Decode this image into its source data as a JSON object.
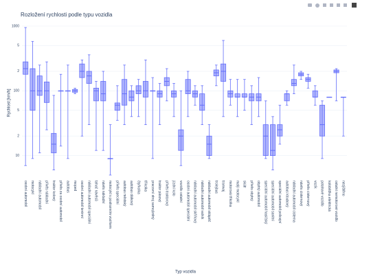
{
  "chart_data": {
    "type": "box",
    "title": "Rozložení rychlosti podle typu vozidla",
    "x_label": "Typ vozidla",
    "y_label": "Rychlost [km/h]",
    "color": "#636efa",
    "fill": "rgba(99,110,250,0.5)",
    "log_y": true,
    "grid": true,
    "ylim": [
      5,
      1000
    ],
    "yticks": [
      {
        "value": 10,
        "label": "10"
      },
      {
        "value": 20,
        "label": "2"
      },
      {
        "value": 50,
        "label": "5"
      },
      100,
      {
        "value": 200,
        "label": "2"
      },
      {
        "value": 500,
        "label": "5"
      },
      {
        "value": 1000,
        "label": "1000"
      }
    ],
    "categories": [
      "osobní automobil",
      "motocykl",
      "nákladní automobil",
      "přívěs nákladní",
      "traktor kolový",
      "přívěs za osobní automobil",
      "autobus",
      "moped",
      "osobní automobil terénní",
      "nákladní automobil speciální",
      "tahač návěsů",
      "návěs nákladní",
      "motocykl s postranním vozíkem",
      "přívěs speciální",
      "autobus městský",
      "autobus dálkový",
      "čtyřkolka",
      "tříkolka",
      "pracovní stroj samojízdný",
      "traktor pásový",
      "přívěs traktorový",
      "jízdní kolo",
      "vozidlo ostatní",
      "osobní automobil speciální",
      "nákladní automobil skříňový",
      "nákladní automobil valník",
      "nákladní automobil sklápěč",
      "trolejbus",
      "tramvaj",
      "motorová tříkolka",
      "malý motocykl",
      "skútr",
      "přívěs obytný",
      "obytný automobil",
      "speciální automobil hasičský",
      "speciální automobil sanitní",
      "speciální automobil policejní",
      "autobus kloubový",
      "nákladní automobil cisterna",
      "návěs cisternový",
      "přívěs cisternový",
      "vozík",
      "potahové vozidlo",
      "koloběžka elektrická",
      "ostatní nemotorové vozidlo",
      "nezjištěno"
    ],
    "values": [
      [
        7,
        180,
        220,
        280,
        950
      ],
      [
        9,
        50,
        100,
        220,
        580
      ],
      [
        11,
        85,
        100,
        170,
        250
      ],
      [
        25,
        66,
        100,
        137,
        280
      ],
      [
        6,
        11,
        15,
        22,
        85
      ],
      [
        14,
        100,
        100,
        100,
        180
      ],
      [
        9,
        100,
        100,
        100,
        250
      ],
      [
        90,
        95,
        100,
        105,
        110
      ],
      [
        20,
        160,
        200,
        260,
        300
      ],
      [
        30,
        130,
        170,
        200,
        360
      ],
      [
        12,
        70,
        100,
        110,
        140
      ],
      [
        12,
        70,
        90,
        140,
        200
      ],
      [
        5,
        9,
        9,
        9,
        30
      ],
      [
        35,
        50,
        60,
        65,
        120
      ],
      [
        30,
        60,
        90,
        150,
        250
      ],
      [
        40,
        70,
        80,
        100,
        120
      ],
      [
        40,
        90,
        100,
        120,
        150
      ],
      [
        30,
        80,
        100,
        140,
        300
      ],
      [
        9,
        100,
        100,
        100,
        160
      ],
      [
        30,
        80,
        90,
        100,
        130
      ],
      [
        70,
        120,
        140,
        160,
        220
      ],
      [
        40,
        80,
        90,
        100,
        130
      ],
      [
        7,
        12,
        20,
        25,
        100
      ],
      [
        40,
        90,
        100,
        150,
        200
      ],
      [
        60,
        80,
        90,
        100,
        120
      ],
      [
        30,
        50,
        60,
        90,
        120
      ],
      [
        9,
        10,
        15,
        20,
        30
      ],
      [
        120,
        170,
        190,
        210,
        250
      ],
      [
        40,
        140,
        200,
        260,
        600
      ],
      [
        60,
        80,
        90,
        100,
        150
      ],
      [
        40,
        80,
        80,
        90,
        150
      ],
      [
        50,
        80,
        80,
        90,
        150
      ],
      [
        30,
        70,
        80,
        90,
        120
      ],
      [
        40,
        70,
        80,
        90,
        160
      ],
      [
        9,
        10,
        20,
        30,
        70
      ],
      [
        6,
        10,
        12,
        30,
        40
      ],
      [
        15,
        20,
        25,
        30,
        60
      ],
      [
        60,
        70,
        90,
        90,
        100
      ],
      [
        90,
        120,
        130,
        150,
        250
      ],
      [
        150,
        170,
        180,
        190,
        200
      ],
      [
        110,
        140,
        150,
        160,
        180
      ],
      [
        60,
        80,
        80,
        100,
        120
      ],
      [
        9,
        20,
        30,
        60,
        70
      ],
      [
        80,
        80,
        80,
        80,
        80
      ],
      [
        70,
        190,
        200,
        210,
        220
      ],
      [
        20,
        80,
        80,
        80,
        80
      ]
    ]
  }
}
